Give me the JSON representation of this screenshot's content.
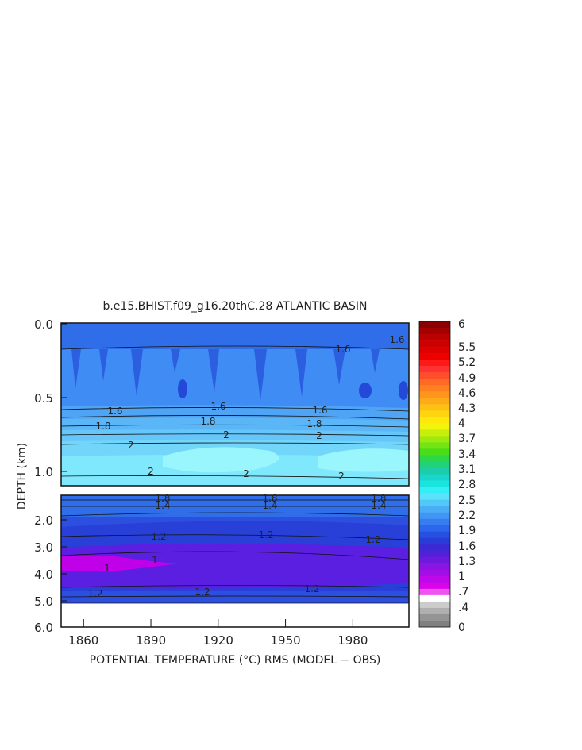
{
  "chart_data": {
    "type": "heatmap",
    "title": "b.e15.BHIST.f09_g16.20thC.28 ATLANTIC BASIN",
    "xlabel": "POTENTIAL TEMPERATURE (°C) RMS (MODEL − OBS)",
    "ylabel": "DEPTH (km)",
    "x_ticks": [
      "1860",
      "1890",
      "1920",
      "1950",
      "1980"
    ],
    "x_range": [
      1850,
      2005
    ],
    "upper_panel": {
      "depth_range_km": [
        0.0,
        1.1
      ],
      "y_ticks": [
        "0.0",
        "0.5",
        "1.0"
      ]
    },
    "lower_panel": {
      "depth_range_km": [
        1.1,
        6.0
      ],
      "y_ticks": [
        "2.0",
        "3.0",
        "4.0",
        "5.0",
        "6.0"
      ]
    },
    "colorbar": {
      "labels": [
        "6",
        "5.5",
        "5.2",
        "4.9",
        "4.6",
        "4.3",
        "4",
        "3.7",
        "3.4",
        "3.1",
        "2.8",
        "2.5",
        "2.2",
        "1.9",
        "1.6",
        "1.3",
        "1",
        ".7",
        ".4",
        "0"
      ]
    },
    "contour_labels": {
      "upper": [
        "1.6",
        "1.6",
        "1.6",
        "1.8",
        "1.8",
        "1.8",
        "2",
        "2",
        "2",
        "2",
        "2",
        "2",
        "1.6",
        "1.6"
      ],
      "lower": [
        "1.8",
        "1.4",
        "1.8",
        "1.4",
        "1.8",
        "1.4",
        "1.2",
        "1.2",
        "1.2",
        "1",
        "1",
        "1.2",
        "1.2",
        "1.2"
      ]
    },
    "notes": [
      "upper panel (0–1.1 km) mostly blue → cyan with depth; lower panel (1.5–6 km) blue with purple/magenta minimum near 3.5–4 km, 1850–1900"
    ]
  }
}
